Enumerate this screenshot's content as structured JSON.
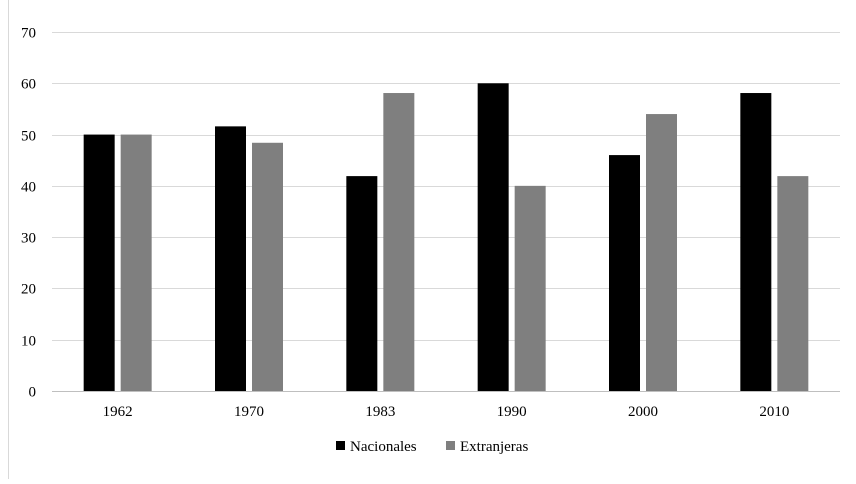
{
  "chart_data": {
    "type": "bar",
    "title": "",
    "xlabel": "",
    "ylabel": "",
    "categories": [
      "1962",
      "1970",
      "1983",
      "1990",
      "2000",
      "2010"
    ],
    "series": [
      {
        "name": "Nacionales",
        "color": "#000000",
        "values": [
          50.0,
          51.6,
          41.9,
          60.0,
          46.0,
          58.1
        ]
      },
      {
        "name": "Extranjeras",
        "color": "#7f7f7f",
        "values": [
          50.0,
          48.4,
          58.1,
          40.0,
          54.0,
          41.9
        ]
      }
    ],
    "ylim": [
      0,
      70
    ],
    "yticks": [
      0,
      10,
      20,
      30,
      40,
      50,
      60,
      70
    ],
    "grid": true,
    "legend_position": "bottom"
  }
}
